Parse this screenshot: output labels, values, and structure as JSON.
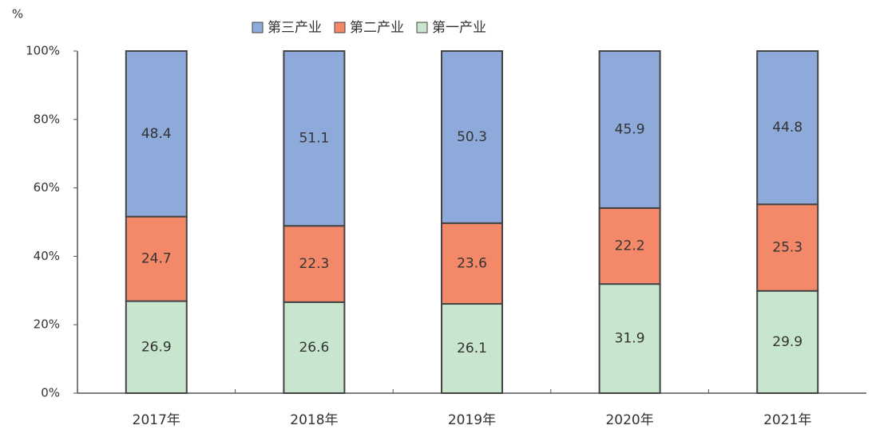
{
  "chart_data": {
    "type": "stacked-bar",
    "y_label": "%",
    "categories": [
      "2017年",
      "2018年",
      "2019年",
      "2020年",
      "2021年"
    ],
    "series": [
      {
        "name": "第三产业",
        "color": "#8eaadb",
        "values": [
          48.4,
          51.1,
          50.3,
          45.9,
          44.8
        ]
      },
      {
        "name": "第二产业",
        "color": "#f4896a",
        "values": [
          24.7,
          22.3,
          23.6,
          22.2,
          25.3
        ]
      },
      {
        "name": "第一产业",
        "color": "#c8e6cd",
        "values": [
          26.9,
          26.6,
          26.1,
          31.9,
          29.9
        ]
      }
    ],
    "ylim": [
      0,
      100
    ],
    "yticks": [
      {
        "value": 0,
        "label": "0%"
      },
      {
        "value": 20,
        "label": "20%"
      },
      {
        "value": 40,
        "label": "40%"
      },
      {
        "value": 60,
        "label": "60%"
      },
      {
        "value": 80,
        "label": "80%"
      },
      {
        "value": 100,
        "label": "100%"
      }
    ]
  }
}
